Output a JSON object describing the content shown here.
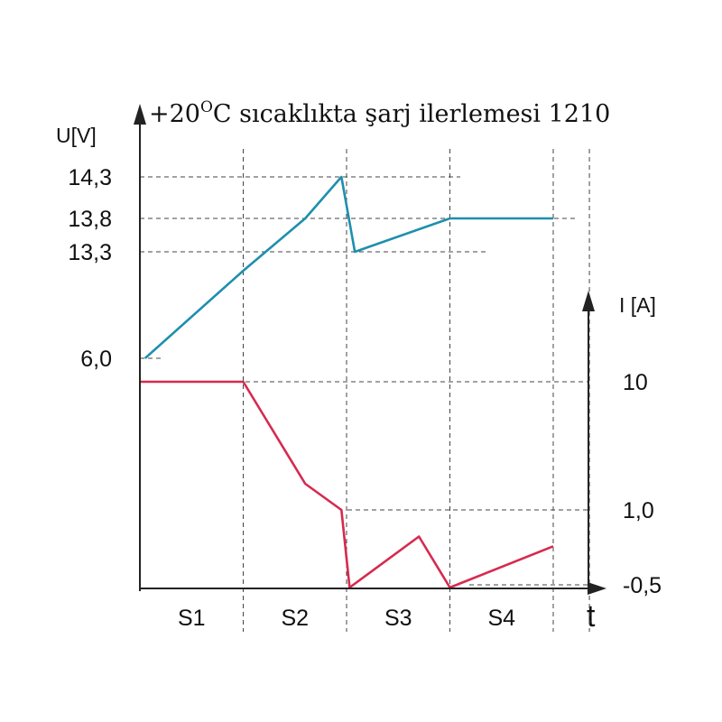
{
  "chart_data": {
    "type": "line",
    "title": {
      "prefix": "+20",
      "superscript": "O",
      "rest": "C sıcaklıkta şarj ilerlemesi 1210"
    },
    "y_left_label": "U[V]",
    "y_right_label": "I [A]",
    "x_label": "t",
    "x_segments": [
      "S1",
      "S2",
      "S3",
      "S4"
    ],
    "x_boundaries": [
      0,
      1,
      2,
      3,
      4,
      4.35
    ],
    "y_left_ticks": [
      {
        "value": 14.3,
        "label": "14,3"
      },
      {
        "value": 13.8,
        "label": "13,8"
      },
      {
        "value": 13.3,
        "label": "13,3"
      },
      {
        "value": 6.0,
        "label": "6,0"
      }
    ],
    "y_right_ticks": [
      {
        "value": 10,
        "label": "10"
      },
      {
        "value": 1.0,
        "label": "1,0"
      },
      {
        "value": 0.5,
        "label": "0,5"
      }
    ],
    "series": [
      {
        "axis": "left",
        "color": "#1e8fae",
        "points": [
          [
            0.05,
            6.0
          ],
          [
            1.0,
            11.5
          ],
          [
            1.6,
            13.8
          ],
          [
            1.95,
            14.3
          ],
          [
            2.08,
            13.3
          ],
          [
            3.0,
            13.8
          ],
          [
            4.0,
            13.8
          ]
        ]
      },
      {
        "axis": "right",
        "color": "#d62a4e",
        "points": [
          [
            0.0,
            10
          ],
          [
            1.0,
            10
          ],
          [
            1.6,
            1.6
          ],
          [
            1.95,
            1.0
          ],
          [
            2.03,
            0.5
          ],
          [
            2.7,
            0.62
          ],
          [
            3.0,
            0.5
          ],
          [
            4.0,
            0.52
          ]
        ]
      }
    ]
  }
}
